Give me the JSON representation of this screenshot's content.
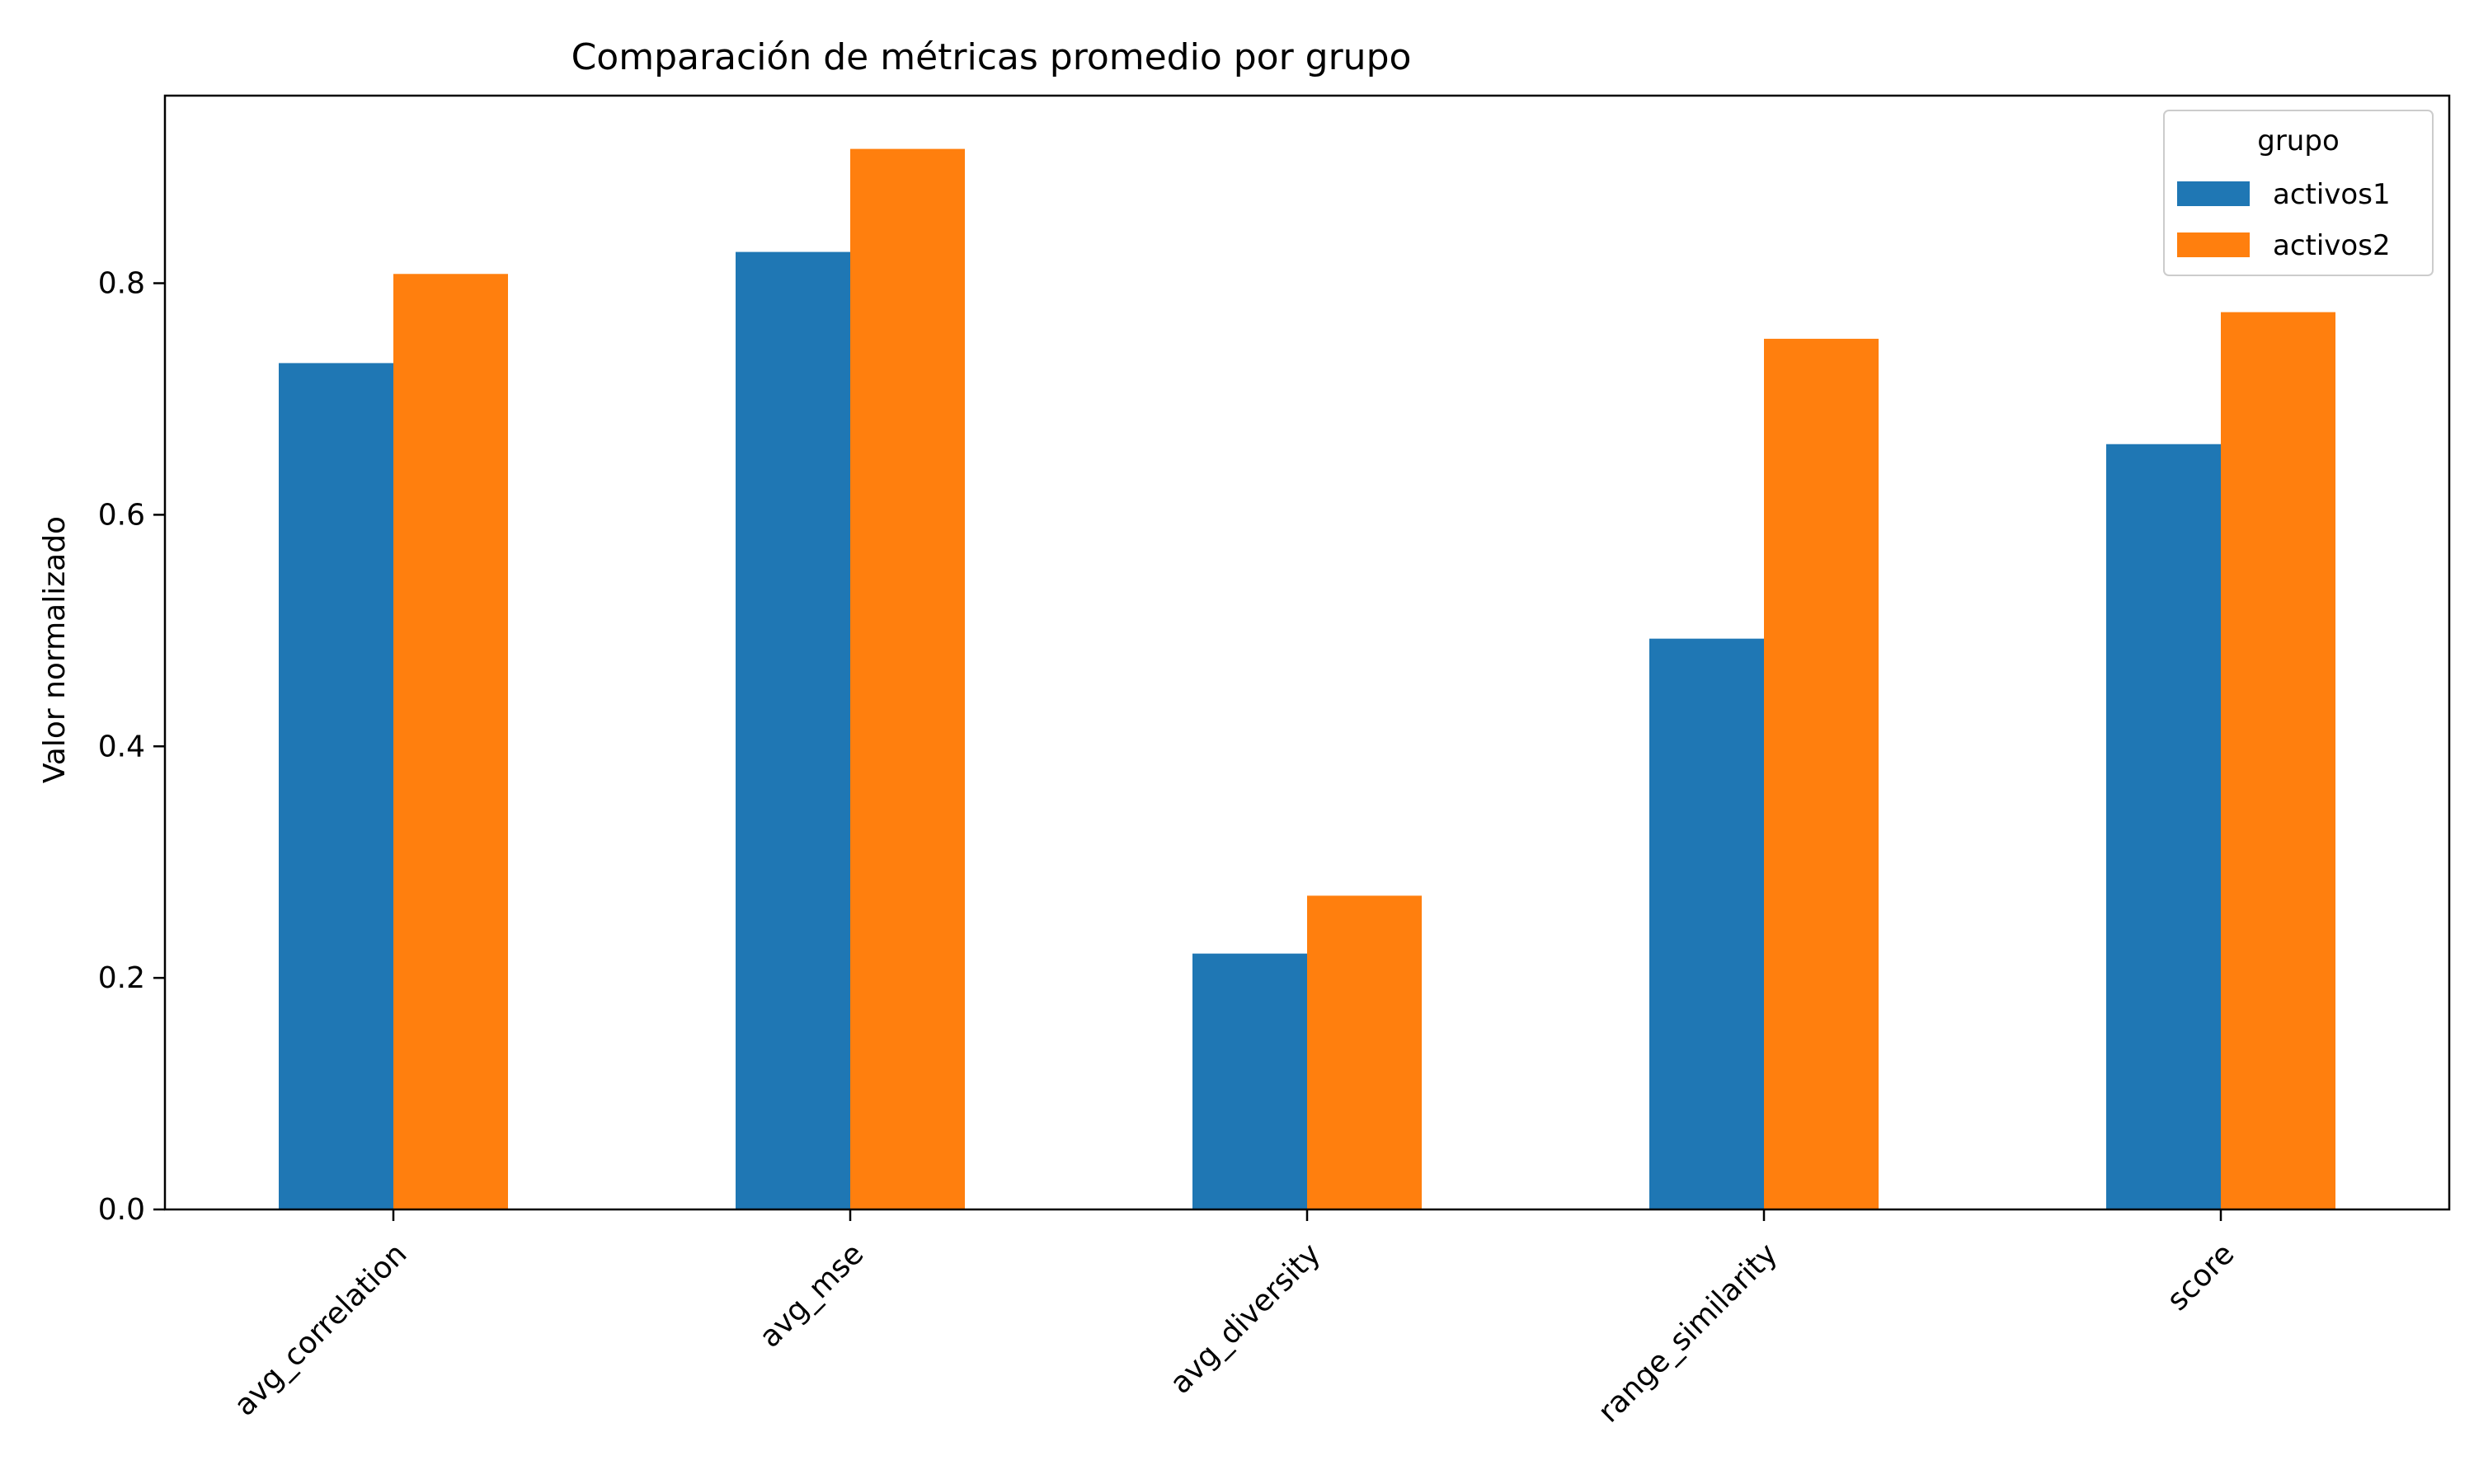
{
  "chart_data": {
    "type": "bar",
    "title": "Comparación de métricas promedio por grupo",
    "xlabel": "",
    "ylabel": "Valor normalizado",
    "categories": [
      "avg_correlation",
      "avg_mse",
      "avg_diversity",
      "range_similarity",
      "score"
    ],
    "series": [
      {
        "name": "activos1",
        "color": "#1f77b4",
        "values": [
          0.731,
          0.827,
          0.221,
          0.493,
          0.661
        ]
      },
      {
        "name": "activos2",
        "color": "#ff7f0e",
        "values": [
          0.808,
          0.916,
          0.271,
          0.752,
          0.775
        ]
      }
    ],
    "ylim": [
      0,
      0.962
    ],
    "yticks": [
      "0.0",
      "0.2",
      "0.4",
      "0.6",
      "0.8"
    ],
    "ytick_values": [
      0.0,
      0.2,
      0.4,
      0.6,
      0.8
    ],
    "legend": {
      "title": "grupo",
      "position": "top-right"
    },
    "grid": false
  }
}
